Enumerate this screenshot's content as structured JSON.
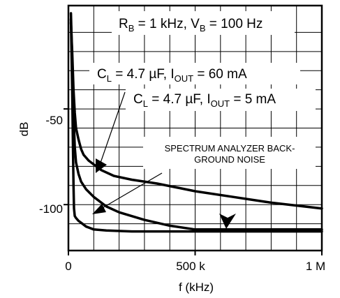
{
  "chart_data": {
    "type": "line",
    "title": "",
    "xlabel": "f (kHz)",
    "ylabel": "dB",
    "x_tick_labels": [
      "0",
      "500 k",
      "1 M"
    ],
    "y_tick_labels": [
      "-50",
      "-100"
    ],
    "xlim": [
      0,
      1000
    ],
    "ylim": [
      -124,
      4
    ],
    "grid": true,
    "x_major_ticks": [
      0,
      500,
      1000
    ],
    "x_minor_ticks": [
      100,
      200,
      300,
      400,
      600,
      700,
      800,
      900
    ],
    "y_major_ticks": [
      -50,
      -100
    ],
    "y_minor_ticks": [
      -10,
      -20,
      -30,
      -40,
      -60,
      -70,
      -80,
      -90,
      -110
    ],
    "series": [
      {
        "x": [
          10,
          15,
          20,
          25,
          30,
          40,
          50,
          60,
          80,
          100,
          130,
          180,
          250,
          350,
          500,
          650,
          800,
          1000
        ],
        "y": [
          -5,
          -20,
          -40,
          -52,
          -60,
          -66,
          -71,
          -74,
          -77,
          -79,
          -82,
          -85,
          -87,
          -89,
          -93,
          -96,
          -99,
          -102
        ]
      },
      {
        "x": [
          10,
          15,
          20,
          25,
          30,
          40,
          50,
          70,
          100,
          150,
          200,
          300,
          400,
          500,
          700,
          1000
        ],
        "y": [
          0,
          -25,
          -52,
          -70,
          -78,
          -84,
          -88,
          -92,
          -96,
          -101,
          -104,
          -108,
          -111,
          -113,
          -113,
          -113
        ]
      },
      {
        "x": [
          10,
          15,
          18,
          20,
          22,
          25,
          30,
          40,
          50,
          70,
          100,
          150,
          250,
          500,
          1000
        ],
        "y": [
          -3,
          -40,
          -70,
          -90,
          -102,
          -106,
          -107,
          -108.5,
          -109.5,
          -111.5,
          -113,
          -113.5,
          -114,
          -114,
          -114
        ]
      }
    ],
    "annotations": {
      "bias": {
        "prefix": "R",
        "sub1": "B",
        "mid": " = 1 kHz, V",
        "sub2": "B",
        "suffix": " = 100 Hz"
      },
      "cl60": {
        "prefix": "C",
        "sub1": "L",
        "mid": " = 4.7 µF, I",
        "sub2": "OUT",
        "suffix": " = 60 mA"
      },
      "cl5": {
        "prefix": "C",
        "sub1": "L",
        "mid": " = 4.7 µF, I",
        "sub2": "OUT",
        "suffix": " = 5 mA"
      },
      "noise": [
        "SPECTRUM ANALYZER BACK-",
        "GROUND NOISE"
      ]
    }
  }
}
